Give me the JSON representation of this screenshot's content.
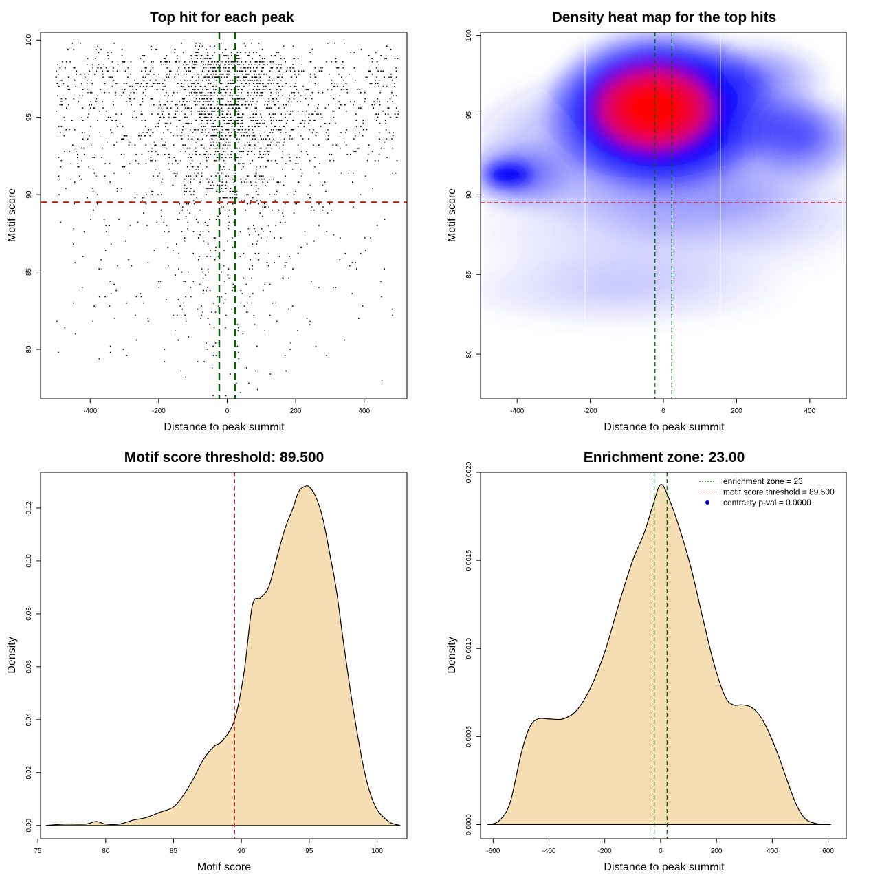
{
  "chart_data": [
    {
      "type": "scatter",
      "title": "Top hit for each peak",
      "xlabel": "Distance to peak summit",
      "ylabel": "Motif score",
      "xlim": [
        -545,
        525
      ],
      "ylim": [
        76.8,
        100.5
      ],
      "xticks": [
        -400,
        -200,
        0,
        200,
        400
      ],
      "xtick_labels": [
        "-400",
        "-200",
        "0",
        "200",
        "400"
      ],
      "yticks": [
        80,
        85,
        90,
        95,
        100
      ],
      "ytick_labels": [
        "80",
        "85",
        "90",
        "95",
        "100"
      ],
      "grid": false,
      "n_points": 2600,
      "x_range": [
        -500,
        500
      ],
      "score_range": [
        77,
        100
      ],
      "hlines": [
        {
          "y": 89.5,
          "color": "#dd2222",
          "style": "dashed"
        }
      ],
      "vlines": [
        {
          "x": -23,
          "color": "#006600",
          "style": "dashed"
        },
        {
          "x": 23,
          "color": "#006600",
          "style": "dashed"
        }
      ]
    },
    {
      "type": "heatmap",
      "title": "Density heat map for the top hits",
      "xlabel": "Distance to peak summit",
      "ylabel": "Motif score",
      "xlim": [
        -500,
        500
      ],
      "ylim": [
        77.2,
        100.2
      ],
      "xticks": [
        -400,
        -200,
        0,
        200,
        400
      ],
      "xtick_labels": [
        "-400",
        "-200",
        "0",
        "200",
        "400"
      ],
      "yticks": [
        80,
        85,
        90,
        95,
        100
      ],
      "ytick_labels": [
        "80",
        "85",
        "90",
        "95",
        "100"
      ],
      "colors": [
        "#ffffff",
        "#0000ff",
        "#ff0000"
      ],
      "hotspot": {
        "x": -20,
        "y": 95
      },
      "hlines": [
        {
          "y": 89.5,
          "color": "#dd2222",
          "style": "dashed"
        }
      ],
      "vlines": [
        {
          "x": -23,
          "color": "#006600",
          "style": "dashed"
        },
        {
          "x": 23,
          "color": "#006600",
          "style": "dashed"
        }
      ]
    },
    {
      "type": "area",
      "title": "Motif score threshold: 89.500",
      "xlabel": "Motif score",
      "ylabel": "Density",
      "xlim": [
        75.2,
        102.2
      ],
      "ylim": [
        -0.005,
        0.1335
      ],
      "xticks": [
        75,
        80,
        85,
        90,
        95,
        100
      ],
      "xtick_labels": [
        "75",
        "80",
        "85",
        "90",
        "95",
        "100"
      ],
      "yticks": [
        0,
        0.02,
        0.04,
        0.06,
        0.08,
        0.1,
        0.12
      ],
      "ytick_labels": [
        "0.00",
        "0.02",
        "0.04",
        "0.06",
        "0.08",
        "0.10",
        "0.12"
      ],
      "fill": "#f5deb3",
      "x": [
        75.6,
        77.0,
        78.5,
        79.3,
        80.0,
        81.0,
        82.0,
        83.0,
        84.0,
        85.0,
        85.8,
        86.5,
        87.2,
        88.0,
        88.6,
        89.5,
        90.2,
        90.8,
        91.4,
        92.0,
        92.6,
        93.2,
        93.8,
        94.2,
        94.6,
        95.0,
        95.5,
        96.0,
        96.5,
        97.0,
        97.5,
        98.0,
        98.5,
        99.0,
        99.5,
        100.0,
        100.5,
        101.0,
        101.7
      ],
      "y": [
        0.0,
        0.0005,
        0.0005,
        0.0015,
        0.0005,
        0.0005,
        0.002,
        0.003,
        0.005,
        0.007,
        0.012,
        0.018,
        0.025,
        0.03,
        0.032,
        0.04,
        0.058,
        0.083,
        0.086,
        0.09,
        0.101,
        0.112,
        0.12,
        0.126,
        0.128,
        0.128,
        0.124,
        0.116,
        0.103,
        0.089,
        0.07,
        0.052,
        0.036,
        0.022,
        0.012,
        0.006,
        0.003,
        0.001,
        0.0
      ],
      "vlines": [
        {
          "x": 89.5,
          "color": "#dd2222",
          "style": "dashed"
        }
      ]
    },
    {
      "type": "area",
      "title": "Enrichment zone: 23.00",
      "xlabel": "Distance to peak summit",
      "ylabel": "Density",
      "xlim": [
        -645,
        665
      ],
      "ylim": [
        -8e-05,
        0.002
      ],
      "xticks": [
        -600,
        -400,
        -200,
        0,
        200,
        400,
        600
      ],
      "xtick_labels": [
        "-600",
        "-400",
        "-200",
        "0",
        "200",
        "400",
        "600"
      ],
      "yticks": [
        0,
        0.0005,
        0.001,
        0.0015,
        0.002
      ],
      "ytick_labels": [
        "0.0000",
        "0.0005",
        "0.0010",
        "0.0015",
        "0.0020"
      ],
      "fill": "#f5deb3",
      "x": [
        -620,
        -580,
        -540,
        -500,
        -470,
        -440,
        -400,
        -350,
        -300,
        -250,
        -200,
        -150,
        -100,
        -60,
        -30,
        0,
        30,
        70,
        110,
        150,
        190,
        230,
        260,
        290,
        320,
        350,
        380,
        420,
        460,
        490,
        520,
        560,
        610
      ],
      "y": [
        0.0,
        2e-05,
        0.00012,
        0.0004,
        0.00055,
        0.0006,
        0.0006,
        0.0006,
        0.00065,
        0.00078,
        0.00098,
        0.00125,
        0.0015,
        0.00165,
        0.0018,
        0.00193,
        0.00185,
        0.00167,
        0.00145,
        0.00118,
        0.00092,
        0.00073,
        0.00068,
        0.00068,
        0.00067,
        0.00063,
        0.00055,
        0.0004,
        0.00022,
        0.0001,
        3e-05,
        5e-06,
        0.0
      ],
      "vlines": [
        {
          "x": -23,
          "color": "#006600",
          "style": "dashed"
        },
        {
          "x": 23,
          "color": "#006600",
          "style": "dashed"
        }
      ],
      "legend_position": "top-right",
      "legend": [
        {
          "label": "enrichment zone = 23",
          "color": "#006600",
          "style": "dotted-line"
        },
        {
          "label": "motif score threshold = 89.500",
          "color": "#dd2222",
          "style": "dotted-line"
        },
        {
          "label": "centrality p-val = 0.0000",
          "color": "#0000cc",
          "style": "dot"
        }
      ]
    }
  ]
}
